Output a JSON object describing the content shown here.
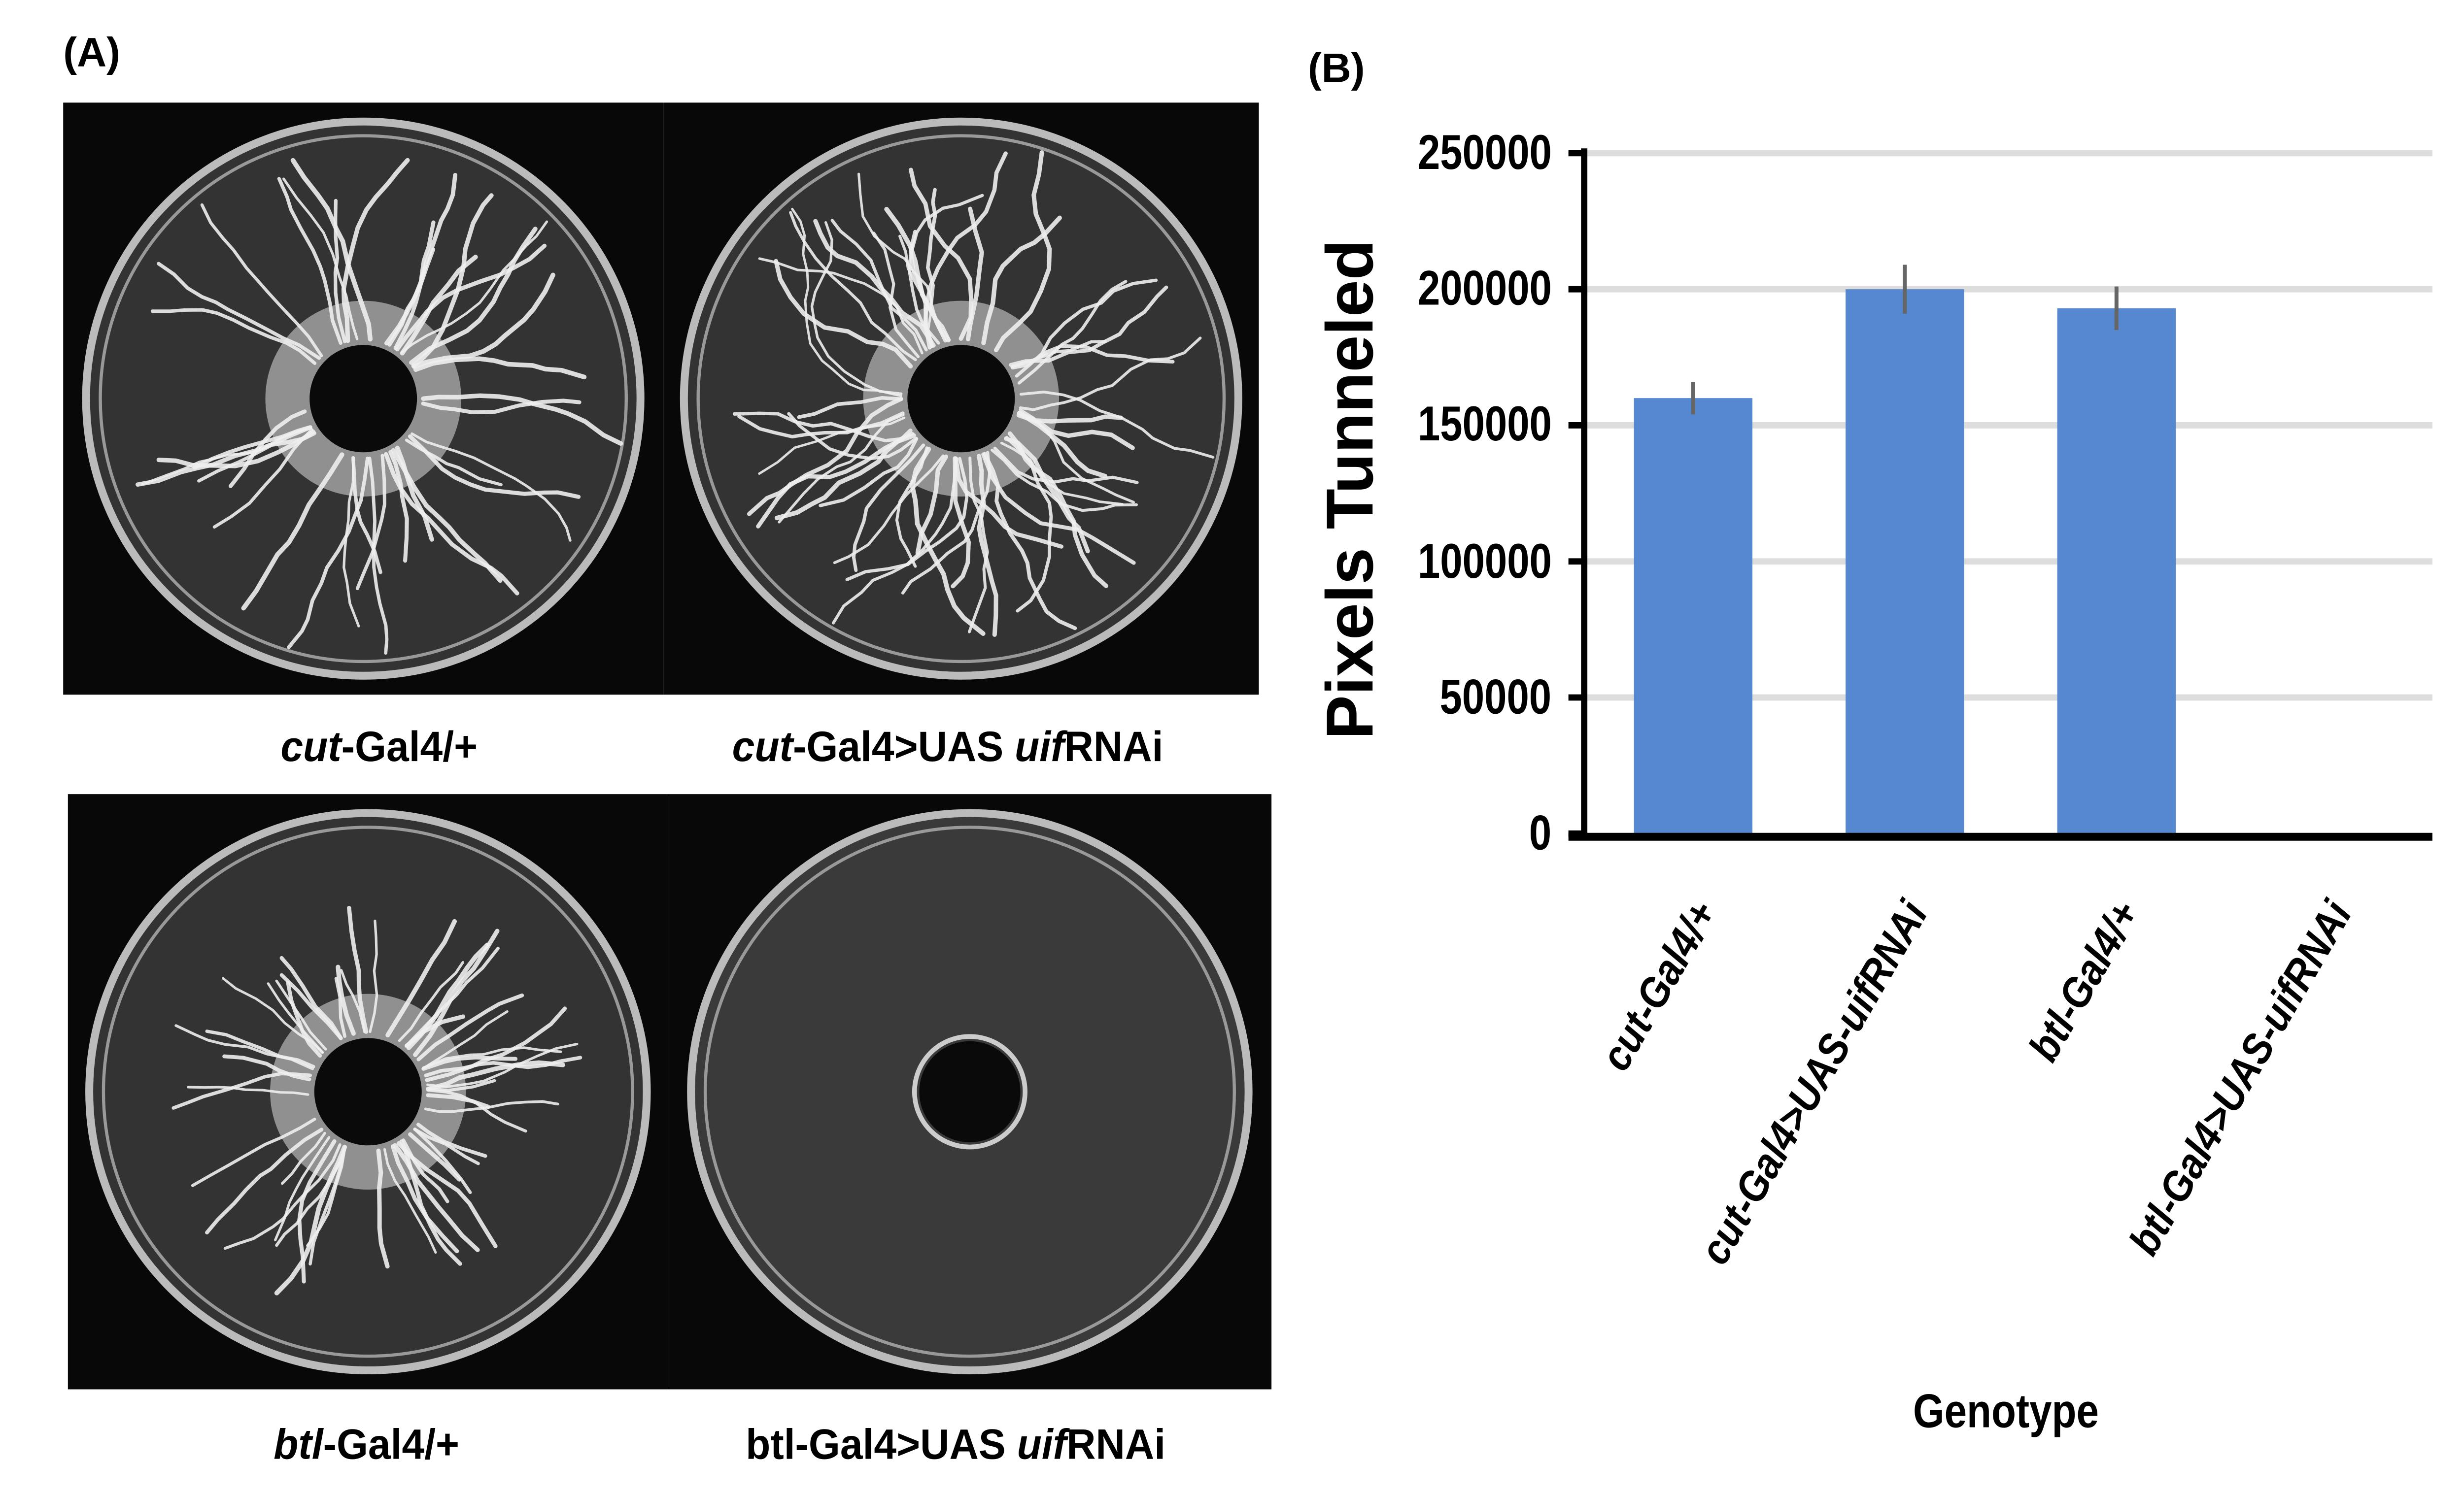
{
  "panel_a": {
    "label": "(A)",
    "images": [
      {
        "caption_italic": "cut",
        "caption_rest": "-Gal4/+",
        "caption_tail_italic": "",
        "caption_tail": "",
        "tunneling": "normal"
      },
      {
        "caption_italic": "cut",
        "caption_rest": "-Gal4>UAS ",
        "caption_tail_italic": "uif",
        "caption_tail": "RNAi",
        "tunneling": "dense"
      },
      {
        "caption_italic": "btl",
        "caption_rest": "-Gal4/+",
        "caption_tail_italic": "",
        "caption_tail": "",
        "tunneling": "radial"
      },
      {
        "caption_italic": "",
        "caption_rest": "btl-Gal4>UAS ",
        "caption_tail_italic": "uif",
        "caption_tail": "RNAi",
        "tunneling": "none"
      }
    ]
  },
  "panel_b": {
    "label": "(B)"
  },
  "chart_data": {
    "type": "bar",
    "title": "",
    "xlabel": "Genotype",
    "ylabel": "Pixels Tunneled",
    "categories": [
      "cut-Gal4/+",
      "cut-Gal4>UAS-uifRNAi",
      "btl-Gal4/+",
      "btl-Gal4>UAS-uifRNAi"
    ],
    "values": [
      160000,
      200000,
      193000,
      0
    ],
    "errors": [
      6000,
      9000,
      8000,
      0
    ],
    "ylim": [
      0,
      250000
    ],
    "yticks": [
      "0",
      "50000",
      "100000",
      "150000",
      "200000",
      "250000"
    ],
    "grid": true,
    "bar_color": "#5588d0",
    "error_color": "#666666",
    "grid_color": "#dddddd"
  }
}
